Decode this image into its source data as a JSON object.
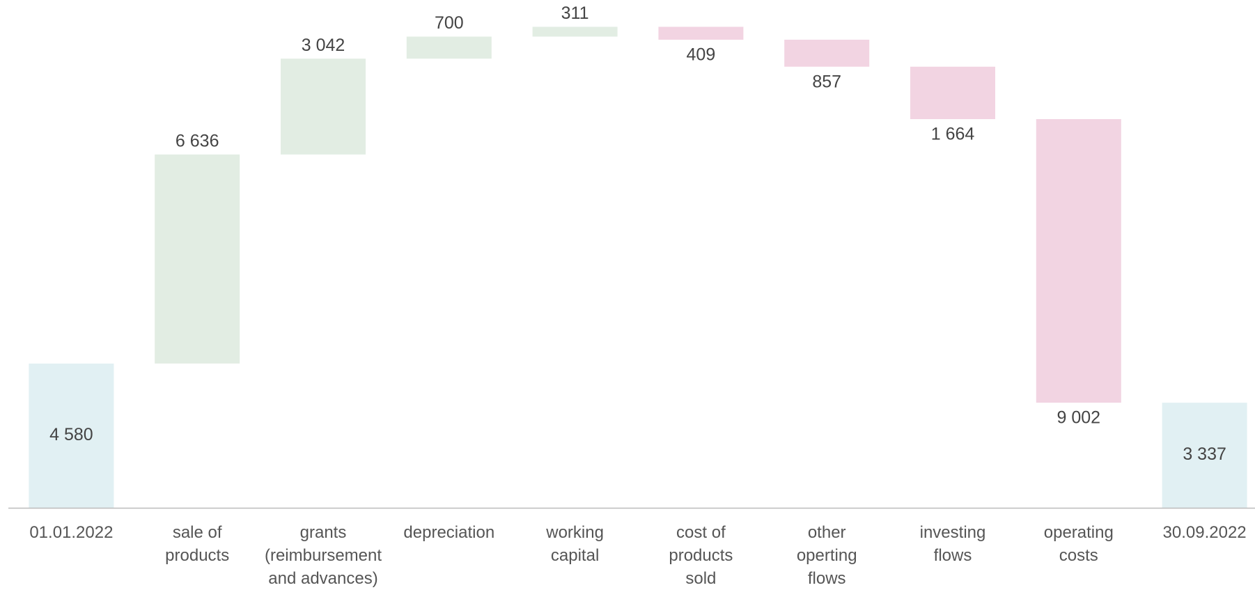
{
  "chart_data": {
    "type": "waterfall",
    "categories": [
      "01.01.2022",
      "sale of\nproducts",
      "grants\n(reimbursement\nand advances)",
      "depreciation",
      "working\ncapital",
      "cost of\nproducts\nsold",
      "other\noperting\nflows",
      "investing\nflows",
      "operating\ncosts",
      "30.09.2022"
    ],
    "values": [
      4580,
      6636,
      3042,
      700,
      311,
      -409,
      -857,
      -1664,
      -9002,
      3337
    ],
    "value_labels": [
      "4 580",
      "6 636",
      "3 042",
      "700",
      "311",
      "409",
      "857",
      "1 664",
      "9 002",
      "3 337"
    ],
    "measure": [
      "total",
      "relative",
      "relative",
      "relative",
      "relative",
      "relative",
      "relative",
      "relative",
      "relative",
      "total"
    ],
    "colors": {
      "total": "#e1f0f3",
      "increase": "#e2ede3",
      "decrease": "#f2d4e2"
    },
    "ylim": [
      0,
      15700
    ]
  }
}
